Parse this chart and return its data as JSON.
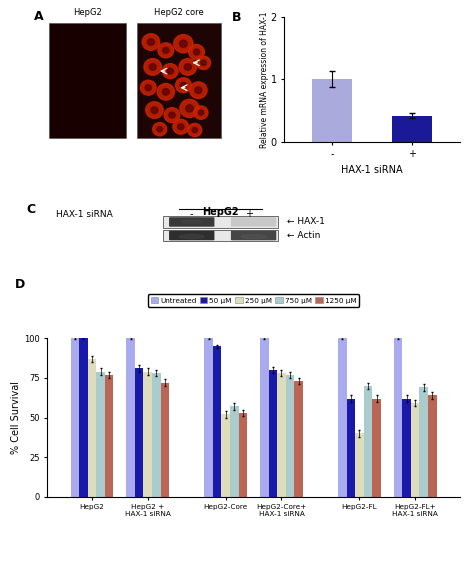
{
  "panel_B": {
    "categories": [
      "-",
      "+"
    ],
    "values": [
      1.0,
      0.42
    ],
    "errors": [
      0.13,
      0.04
    ],
    "bar_colors": [
      "#aaaadd",
      "#1a1a99"
    ],
    "xlabel": "HAX-1 siRNA",
    "ylabel": "Relative mRNA expression of HAX-1",
    "ylim": [
      0,
      2
    ],
    "yticks": [
      0,
      1,
      2
    ]
  },
  "panel_D": {
    "groups": [
      "HepG2",
      "HepG2 +\nHAX-1 siRNA",
      "HepG2-Core",
      "HepG2-Core+\nHAX-1 siRNA",
      "HepG2-FL",
      "HepG2-FL+\nHAX-1 siRNA"
    ],
    "conditions": [
      "Untreated",
      "50 μM",
      "250 μM",
      "750 μM",
      "1250 μM"
    ],
    "values": [
      [
        100,
        100,
        87,
        79,
        77
      ],
      [
        100,
        81,
        79,
        78,
        72
      ],
      [
        100,
        95,
        52,
        57,
        53
      ],
      [
        100,
        80,
        78,
        77,
        73
      ],
      [
        100,
        62,
        40,
        70,
        62
      ],
      [
        100,
        62,
        59,
        69,
        64
      ]
    ],
    "errors": [
      [
        0.5,
        0.5,
        2,
        2,
        2
      ],
      [
        0.5,
        2,
        2,
        2,
        2
      ],
      [
        0.5,
        1,
        2,
        2,
        2
      ],
      [
        0.5,
        2,
        2,
        2,
        2
      ],
      [
        0.5,
        2,
        2,
        2,
        2
      ],
      [
        0.5,
        2,
        2,
        2,
        2
      ]
    ],
    "bar_colors": [
      "#aaaaee",
      "#1a1aaa",
      "#ddddbb",
      "#aacccc",
      "#bb6655"
    ],
    "ylabel": "% Cell Survival",
    "ylim": [
      0,
      100
    ],
    "yticks": [
      0,
      25,
      50,
      75,
      100
    ],
    "legend_labels": [
      "Untreated",
      "50 μM",
      "250 μM",
      "750 μM",
      "1250 μM"
    ]
  },
  "background_color": "#ffffff"
}
